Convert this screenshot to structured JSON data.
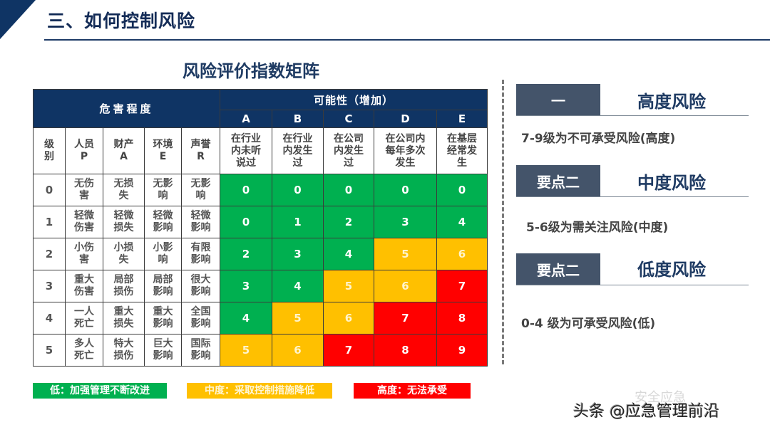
{
  "header": {
    "title": "三、如何控制风险",
    "colors": {
      "primary": "#0f3464",
      "box": "#44546a"
    }
  },
  "matrix": {
    "title": "风险评价指数矩阵",
    "severity_header": "危害程度",
    "likelihood_header": "可能性（增加）",
    "severity_columns": [
      "级\n别",
      "人员\nP",
      "财产\nA",
      "环境\nE",
      "声誉\nR"
    ],
    "likelihood_letters": [
      "A",
      "B",
      "C",
      "D",
      "E"
    ],
    "likelihood_descriptions": [
      "在行业\n内未听\n说过",
      "在行业\n内发生\n过",
      "在公司\n内发生\n过",
      "在公司内\n每年多次\n发生",
      "在基层\n经常发\n生"
    ],
    "rows": [
      {
        "level": "0",
        "P": "无伤\n害",
        "A": "无损\n失",
        "E": "无影\n响",
        "R": "无影\n响",
        "scores": [
          "0",
          "0",
          "0",
          "0",
          "0"
        ],
        "colors": [
          "g",
          "g",
          "g",
          "g",
          "g"
        ]
      },
      {
        "level": "1",
        "P": "轻微\n伤害",
        "A": "轻微\n损失",
        "E": "轻微\n影响",
        "R": "轻微\n影响",
        "scores": [
          "0",
          "1",
          "2",
          "3",
          "4"
        ],
        "colors": [
          "g",
          "g",
          "g",
          "g",
          "g"
        ]
      },
      {
        "level": "2",
        "P": "小伤\n害",
        "A": "小损\n失",
        "E": "小影\n响",
        "R": "有限\n影响",
        "scores": [
          "2",
          "3",
          "4",
          "5",
          "6"
        ],
        "colors": [
          "g",
          "g",
          "g",
          "y",
          "y"
        ]
      },
      {
        "level": "3",
        "P": "重大\n伤害",
        "A": "局部\n损伤",
        "E": "局部\n影响",
        "R": "很大\n影响",
        "scores": [
          "3",
          "4",
          "5",
          "6",
          "7"
        ],
        "colors": [
          "g",
          "g",
          "y",
          "y",
          "r"
        ]
      },
      {
        "level": "4",
        "P": "一人\n死亡",
        "A": "重大\n损失",
        "E": "重大\n影响",
        "R": "全国\n影响",
        "scores": [
          "4",
          "5",
          "6",
          "7",
          "8"
        ],
        "colors": [
          "g",
          "y",
          "y",
          "r",
          "r"
        ]
      },
      {
        "level": "5",
        "P": "多人\n死亡",
        "A": "特大\n损伤",
        "E": "巨大\n影响",
        "R": "国际\n影响",
        "scores": [
          "5",
          "6",
          "7",
          "8",
          "9"
        ],
        "colors": [
          "y",
          "y",
          "r",
          "r",
          "r"
        ]
      }
    ],
    "cell_colors": {
      "g": "#00b050",
      "y": "#ffc000",
      "r": "#ff0000"
    }
  },
  "legend": [
    {
      "label": "低：加强管理不断改进",
      "color": "#00b050"
    },
    {
      "label": "中度：采取控制措施降低",
      "color": "#ffc000"
    },
    {
      "label": "高度：无法承受",
      "color": "#ff0000"
    }
  ],
  "risk_levels": [
    {
      "badge": "一",
      "title": "高度风险",
      "description": "7-9级为不可承受风险(高度)"
    },
    {
      "badge": "要点二",
      "title": "中度风险",
      "description": "5-6级为需关注风险(中度)"
    },
    {
      "badge": "要点二",
      "title": "低度风险",
      "description": "0-4 级为可承受风险(低)"
    }
  ],
  "watermark": {
    "source": "头条 @应急管理前沿",
    "faded": "安全应急"
  }
}
